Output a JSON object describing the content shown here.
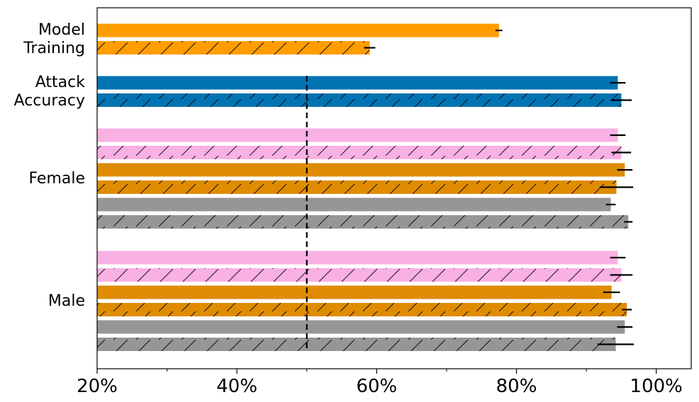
{
  "chart_data": {
    "type": "bar",
    "orientation": "horizontal",
    "xlim": [
      20,
      105
    ],
    "x_ticks": [
      20,
      40,
      60,
      80,
      100
    ],
    "x_tick_labels": [
      "20%",
      "40%",
      "60%",
      "80%",
      "100%"
    ],
    "x_minor_ticks": [
      30,
      50,
      70,
      90
    ],
    "reference_line": {
      "x": 50,
      "style": "dashed",
      "color": "#000000"
    },
    "grid": false,
    "legend": "none",
    "colors": {
      "orange": "#ff9d00",
      "blue": "#0273b2",
      "pink": "#f9b0e3",
      "dark_orange": "#df8c03",
      "gray": "#969696"
    },
    "groups": [
      {
        "label": "Model Training",
        "label_lines": [
          "Model",
          "Training"
        ],
        "bars": [
          {
            "value": 77.5,
            "error": 0.5,
            "color": "orange",
            "hatch": false
          },
          {
            "value": 59,
            "error": 0.8,
            "color": "orange",
            "hatch": true
          }
        ]
      },
      {
        "label": "Attack Accuracy",
        "label_lines": [
          "Attack",
          "Accuracy"
        ],
        "bars": [
          {
            "value": 94.5,
            "error": 1.1,
            "color": "blue",
            "hatch": false
          },
          {
            "value": 95,
            "error": 1.5,
            "color": "blue",
            "hatch": true
          }
        ]
      },
      {
        "label": "Female",
        "label_lines": [
          "Female"
        ],
        "bars": [
          {
            "value": 94.5,
            "error": 1.1,
            "color": "pink",
            "hatch": false
          },
          {
            "value": 95,
            "error": 1.4,
            "color": "pink",
            "hatch": true
          },
          {
            "value": 95.5,
            "error": 1.1,
            "color": "dark_orange",
            "hatch": false
          },
          {
            "value": 94.3,
            "error": 2.4,
            "color": "dark_orange",
            "hatch": true
          },
          {
            "value": 93.5,
            "error": 0.7,
            "color": "gray",
            "hatch": false
          },
          {
            "value": 96,
            "error": 0.6,
            "color": "gray",
            "hatch": true
          }
        ]
      },
      {
        "label": "Male",
        "label_lines": [
          "Male"
        ],
        "bars": [
          {
            "value": 94.5,
            "error": 1.1,
            "color": "pink",
            "hatch": false
          },
          {
            "value": 95,
            "error": 1.6,
            "color": "pink",
            "hatch": true
          },
          {
            "value": 93.6,
            "error": 1.2,
            "color": "dark_orange",
            "hatch": false
          },
          {
            "value": 95.8,
            "error": 0.7,
            "color": "dark_orange",
            "hatch": true
          },
          {
            "value": 95.5,
            "error": 1.1,
            "color": "gray",
            "hatch": false
          },
          {
            "value": 94.2,
            "error": 2.6,
            "color": "gray",
            "hatch": true
          }
        ]
      }
    ]
  }
}
